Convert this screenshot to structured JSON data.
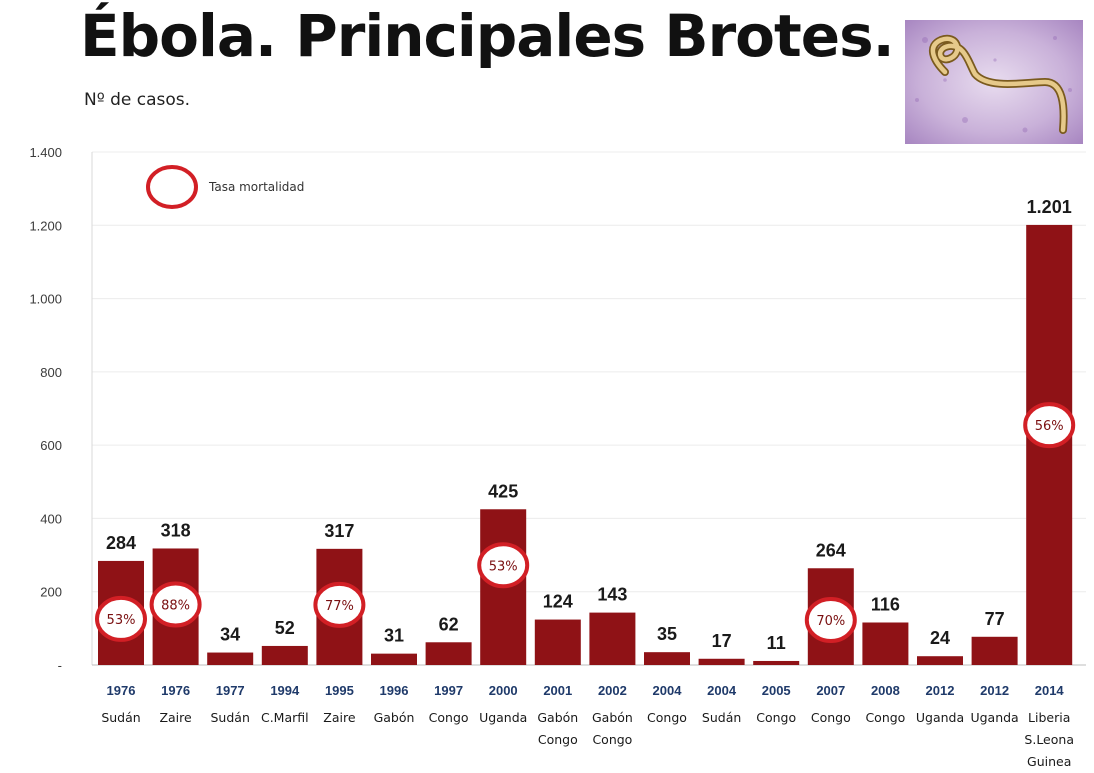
{
  "title": "Ébola. Principales Brotes.",
  "subtitle": "Nº de casos.",
  "image_icon": "ebola-virus-micrograph",
  "colors": {
    "bar": "#8f1216",
    "circle": "#d21f25",
    "grid": "#ececec"
  },
  "chart_data": {
    "type": "bar",
    "title": "Ébola. Principales Brotes.",
    "ylabel": "Nº de casos.",
    "ylim": [
      0,
      1400
    ],
    "yticks": [
      "-",
      "200",
      "400",
      "600",
      "800",
      "1.000",
      "1.200",
      "1.400"
    ],
    "ytick_values": [
      0,
      200,
      400,
      600,
      800,
      1000,
      1200,
      1400
    ],
    "legend": {
      "label": "Tasa mortalidad",
      "placement": "top-left"
    },
    "categories": [
      {
        "year": "1976",
        "place": [
          "Sudán"
        ]
      },
      {
        "year": "1976",
        "place": [
          "Zaire"
        ]
      },
      {
        "year": "1977",
        "place": [
          "Sudán"
        ]
      },
      {
        "year": "1994",
        "place": [
          "C.Marfil"
        ]
      },
      {
        "year": "1995",
        "place": [
          "Zaire"
        ]
      },
      {
        "year": "1996",
        "place": [
          "Gabón"
        ]
      },
      {
        "year": "1997",
        "place": [
          "Congo"
        ]
      },
      {
        "year": "2000",
        "place": [
          "Uganda"
        ]
      },
      {
        "year": "2001",
        "place": [
          "Gabón",
          "Congo"
        ]
      },
      {
        "year": "2002",
        "place": [
          "Gabón",
          "Congo"
        ]
      },
      {
        "year": "2004",
        "place": [
          "Congo"
        ]
      },
      {
        "year": "2004",
        "place": [
          "Sudán"
        ]
      },
      {
        "year": "2005",
        "place": [
          "Congo"
        ]
      },
      {
        "year": "2007",
        "place": [
          "Congo"
        ]
      },
      {
        "year": "2008",
        "place": [
          "Congo"
        ]
      },
      {
        "year": "2012",
        "place": [
          "Uganda"
        ]
      },
      {
        "year": "2012",
        "place": [
          "Uganda"
        ]
      },
      {
        "year": "2014",
        "place": [
          "Liberia",
          "S.Leona",
          "Guinea"
        ]
      }
    ],
    "values": [
      284,
      318,
      34,
      52,
      317,
      31,
      62,
      425,
      124,
      143,
      35,
      17,
      11,
      264,
      116,
      24,
      77,
      1201
    ],
    "value_labels": [
      "284",
      "318",
      "34",
      "52",
      "317",
      "31",
      "62",
      "425",
      "124",
      "143",
      "35",
      "17",
      "11",
      "264",
      "116",
      "24",
      "77",
      "1.201"
    ],
    "mortality": [
      {
        "index": 0,
        "label": "53%"
      },
      {
        "index": 1,
        "label": "88%"
      },
      {
        "index": 4,
        "label": "77%"
      },
      {
        "index": 7,
        "label": "53%"
      },
      {
        "index": 13,
        "label": "70%"
      },
      {
        "index": 17,
        "label": "56%"
      }
    ]
  }
}
